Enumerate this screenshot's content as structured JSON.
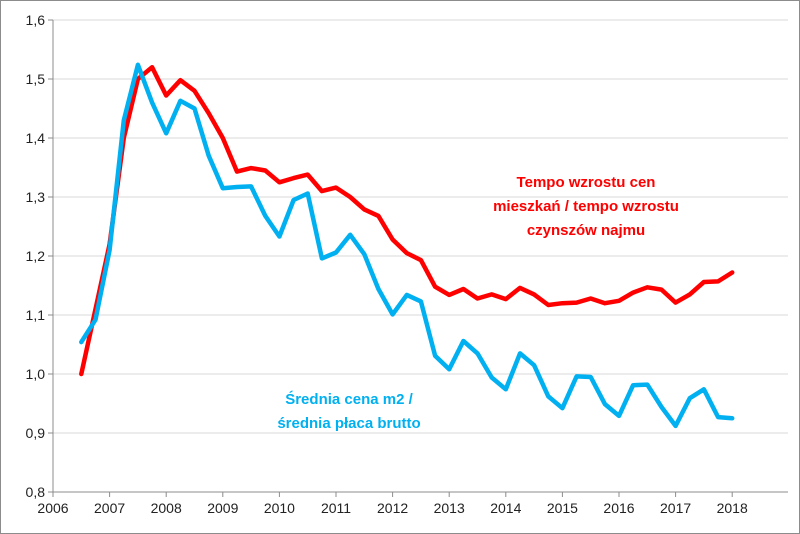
{
  "chart_data": {
    "type": "line",
    "ylim": [
      0.8,
      1.6
    ],
    "y_ticks": [
      "0,8",
      "0,9",
      "1,0",
      "1,1",
      "1,2",
      "1,3",
      "1,4",
      "1,5",
      "1,6"
    ],
    "y_tick_values": [
      0.8,
      0.9,
      1.0,
      1.1,
      1.2,
      1.3,
      1.4,
      1.5,
      1.6
    ],
    "xlim": [
      2006,
      2018.6
    ],
    "x_ticks": [
      "2006",
      "2007",
      "2008",
      "2009",
      "2010",
      "2011",
      "2012",
      "2013",
      "2014",
      "2015",
      "2016",
      "2017",
      "2018"
    ],
    "x_tick_values": [
      2006,
      2007,
      2008,
      2009,
      2010,
      2011,
      2012,
      2013,
      2014,
      2015,
      2016,
      2017,
      2018
    ],
    "grid": "horizontal",
    "annotations": [
      {
        "lines": [
          "Tempo wzrostu cen",
          "mieszkań / tempo wzrostu",
          "czynszów najmu"
        ],
        "color": "#ff0000"
      },
      {
        "lines": [
          "Średnia cena m2 /",
          "średnia płaca brutto"
        ],
        "color": "#00b0f0"
      }
    ],
    "series": [
      {
        "color": "#ff0000",
        "x": [
          2006.5,
          2006.75,
          2007.0,
          2007.25,
          2007.5,
          2007.75,
          2008.0,
          2008.25,
          2008.5,
          2008.75,
          2009.0,
          2009.25,
          2009.5,
          2009.75,
          2010.0,
          2010.25,
          2010.5,
          2010.75,
          2011.0,
          2011.25,
          2011.5,
          2011.75,
          2012.0,
          2012.25,
          2012.5,
          2012.75,
          2013.0,
          2013.25,
          2013.5,
          2013.75,
          2014.0,
          2014.25,
          2014.5,
          2014.75,
          2015.0,
          2015.25,
          2015.5,
          2015.75,
          2016.0,
          2016.25,
          2016.5,
          2016.75,
          2017.0,
          2017.25,
          2017.5,
          2017.75,
          2018.0
        ],
        "values": [
          1.0,
          1.11,
          1.22,
          1.4,
          1.5,
          1.52,
          1.472,
          1.498,
          1.48,
          1.442,
          1.4,
          1.343,
          1.349,
          1.345,
          1.325,
          1.332,
          1.338,
          1.31,
          1.316,
          1.3,
          1.279,
          1.268,
          1.228,
          1.205,
          1.193,
          1.148,
          1.134,
          1.144,
          1.128,
          1.135,
          1.127,
          1.146,
          1.135,
          1.117,
          1.12,
          1.121,
          1.128,
          1.12,
          1.124,
          1.138,
          1.147,
          1.143,
          1.121,
          1.135,
          1.156,
          1.157,
          1.172
        ]
      },
      {
        "color": "#00b0f0",
        "x": [
          2006.5,
          2006.75,
          2007.0,
          2007.25,
          2007.5,
          2007.75,
          2008.0,
          2008.25,
          2008.5,
          2008.75,
          2009.0,
          2009.25,
          2009.5,
          2009.75,
          2010.0,
          2010.25,
          2010.5,
          2010.75,
          2011.0,
          2011.25,
          2011.5,
          2011.75,
          2012.0,
          2012.25,
          2012.5,
          2012.75,
          2013.0,
          2013.25,
          2013.5,
          2013.75,
          2014.0,
          2014.25,
          2014.5,
          2014.75,
          2015.0,
          2015.25,
          2015.5,
          2015.75,
          2016.0,
          2016.25,
          2016.5,
          2016.75,
          2017.0,
          2017.25,
          2017.5,
          2017.75,
          2018.0
        ],
        "values": [
          1.054,
          1.092,
          1.21,
          1.43,
          1.524,
          1.46,
          1.408,
          1.463,
          1.45,
          1.37,
          1.315,
          1.317,
          1.318,
          1.268,
          1.233,
          1.295,
          1.306,
          1.196,
          1.206,
          1.236,
          1.203,
          1.144,
          1.101,
          1.134,
          1.123,
          1.031,
          1.008,
          1.056,
          1.035,
          0.994,
          0.974,
          1.035,
          1.015,
          0.962,
          0.942,
          0.996,
          0.995,
          0.949,
          0.929,
          0.981,
          0.982,
          0.944,
          0.912,
          0.959,
          0.974,
          0.927,
          0.925
        ]
      }
    ]
  }
}
